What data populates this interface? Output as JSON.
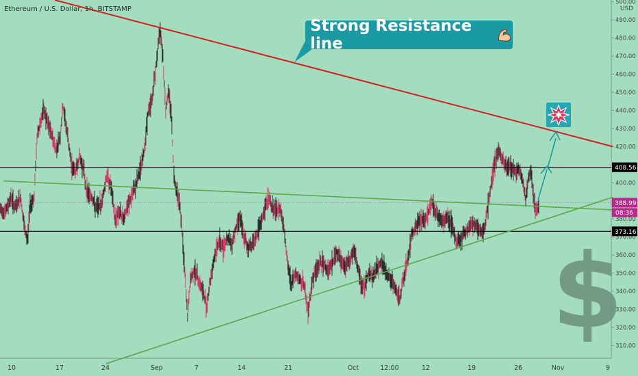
{
  "header": {
    "symbol_text": "Ethereum / U.S. Dollar, 1h, BITSTAMP"
  },
  "annotations": {
    "callout_text": "Strong Resistance line",
    "callout_emoji": "flexed-biceps-icon",
    "boom_icon": "collision-icon",
    "dollar_sign": "$"
  },
  "axis": {
    "currency": "USD"
  },
  "colors": {
    "background": "#a3dcbf",
    "candle_up": "#1a1a1a",
    "candle_down": "#e0245e",
    "resistance": "#d41e1e",
    "trend_green": "#5aa84a",
    "horizontal": "#000000",
    "arrow": "#1a9ba4",
    "price_tag": "#b52a8a"
  },
  "chart_data": {
    "type": "candlestick",
    "title": "Ethereum / U.S. Dollar, 1h, BITSTAMP",
    "ylabel": "USD",
    "ylim": [
      303,
      501
    ],
    "y_ticks": [
      310,
      320,
      330,
      340,
      350,
      360,
      370,
      380,
      390,
      400,
      410,
      420,
      430,
      440,
      450,
      460,
      470,
      480,
      490,
      500
    ],
    "x_ticks": [
      "10",
      "17",
      "24",
      "Sep",
      "7",
      "14",
      "21",
      "Oct",
      "12:00",
      "12",
      "19",
      "26",
      "Nov",
      "9"
    ],
    "series_points": [
      {
        "x": 0,
        "y": 385
      },
      {
        "x": 8,
        "y": 384
      },
      {
        "x": 16,
        "y": 392
      },
      {
        "x": 22,
        "y": 386
      },
      {
        "x": 30,
        "y": 392
      },
      {
        "x": 36,
        "y": 374
      },
      {
        "x": 40,
        "y": 368
      },
      {
        "x": 44,
        "y": 388
      },
      {
        "x": 50,
        "y": 392
      },
      {
        "x": 54,
        "y": 425
      },
      {
        "x": 58,
        "y": 432
      },
      {
        "x": 64,
        "y": 440
      },
      {
        "x": 70,
        "y": 432
      },
      {
        "x": 76,
        "y": 426
      },
      {
        "x": 82,
        "y": 418
      },
      {
        "x": 88,
        "y": 426
      },
      {
        "x": 92,
        "y": 442
      },
      {
        "x": 98,
        "y": 428
      },
      {
        "x": 104,
        "y": 410
      },
      {
        "x": 110,
        "y": 406
      },
      {
        "x": 116,
        "y": 414
      },
      {
        "x": 122,
        "y": 408
      },
      {
        "x": 126,
        "y": 396
      },
      {
        "x": 134,
        "y": 392
      },
      {
        "x": 140,
        "y": 386
      },
      {
        "x": 148,
        "y": 388
      },
      {
        "x": 156,
        "y": 404
      },
      {
        "x": 162,
        "y": 398
      },
      {
        "x": 168,
        "y": 380
      },
      {
        "x": 174,
        "y": 384
      },
      {
        "x": 180,
        "y": 380
      },
      {
        "x": 186,
        "y": 386
      },
      {
        "x": 192,
        "y": 392
      },
      {
        "x": 198,
        "y": 398
      },
      {
        "x": 204,
        "y": 406
      },
      {
        "x": 210,
        "y": 416
      },
      {
        "x": 216,
        "y": 438
      },
      {
        "x": 222,
        "y": 446
      },
      {
        "x": 226,
        "y": 458
      },
      {
        "x": 230,
        "y": 472
      },
      {
        "x": 234,
        "y": 486
      },
      {
        "x": 238,
        "y": 470
      },
      {
        "x": 242,
        "y": 440
      },
      {
        "x": 246,
        "y": 450
      },
      {
        "x": 250,
        "y": 440
      },
      {
        "x": 254,
        "y": 404
      },
      {
        "x": 258,
        "y": 396
      },
      {
        "x": 262,
        "y": 390
      },
      {
        "x": 266,
        "y": 372
      },
      {
        "x": 270,
        "y": 350
      },
      {
        "x": 274,
        "y": 326
      },
      {
        "x": 278,
        "y": 346
      },
      {
        "x": 284,
        "y": 352
      },
      {
        "x": 290,
        "y": 346
      },
      {
        "x": 296,
        "y": 340
      },
      {
        "x": 302,
        "y": 332
      },
      {
        "x": 308,
        "y": 348
      },
      {
        "x": 314,
        "y": 360
      },
      {
        "x": 320,
        "y": 368
      },
      {
        "x": 326,
        "y": 364
      },
      {
        "x": 332,
        "y": 370
      },
      {
        "x": 338,
        "y": 366
      },
      {
        "x": 344,
        "y": 374
      },
      {
        "x": 350,
        "y": 382
      },
      {
        "x": 356,
        "y": 370
      },
      {
        "x": 362,
        "y": 364
      },
      {
        "x": 368,
        "y": 366
      },
      {
        "x": 374,
        "y": 370
      },
      {
        "x": 380,
        "y": 376
      },
      {
        "x": 386,
        "y": 384
      },
      {
        "x": 392,
        "y": 392
      },
      {
        "x": 398,
        "y": 386
      },
      {
        "x": 404,
        "y": 384
      },
      {
        "x": 410,
        "y": 386
      },
      {
        "x": 416,
        "y": 372
      },
      {
        "x": 420,
        "y": 354
      },
      {
        "x": 426,
        "y": 344
      },
      {
        "x": 432,
        "y": 350
      },
      {
        "x": 438,
        "y": 346
      },
      {
        "x": 444,
        "y": 344
      },
      {
        "x": 450,
        "y": 328
      },
      {
        "x": 456,
        "y": 346
      },
      {
        "x": 462,
        "y": 352
      },
      {
        "x": 468,
        "y": 356
      },
      {
        "x": 474,
        "y": 354
      },
      {
        "x": 480,
        "y": 352
      },
      {
        "x": 486,
        "y": 356
      },
      {
        "x": 492,
        "y": 362
      },
      {
        "x": 498,
        "y": 356
      },
      {
        "x": 504,
        "y": 354
      },
      {
        "x": 510,
        "y": 356
      },
      {
        "x": 516,
        "y": 362
      },
      {
        "x": 520,
        "y": 358
      },
      {
        "x": 526,
        "y": 346
      },
      {
        "x": 532,
        "y": 342
      },
      {
        "x": 538,
        "y": 350
      },
      {
        "x": 544,
        "y": 348
      },
      {
        "x": 550,
        "y": 352
      },
      {
        "x": 556,
        "y": 356
      },
      {
        "x": 562,
        "y": 352
      },
      {
        "x": 568,
        "y": 348
      },
      {
        "x": 574,
        "y": 344
      },
      {
        "x": 578,
        "y": 340
      },
      {
        "x": 584,
        "y": 336
      },
      {
        "x": 590,
        "y": 348
      },
      {
        "x": 596,
        "y": 358
      },
      {
        "x": 602,
        "y": 372
      },
      {
        "x": 608,
        "y": 376
      },
      {
        "x": 614,
        "y": 380
      },
      {
        "x": 620,
        "y": 378
      },
      {
        "x": 626,
        "y": 384
      },
      {
        "x": 630,
        "y": 390
      },
      {
        "x": 636,
        "y": 384
      },
      {
        "x": 642,
        "y": 380
      },
      {
        "x": 648,
        "y": 378
      },
      {
        "x": 654,
        "y": 382
      },
      {
        "x": 660,
        "y": 376
      },
      {
        "x": 666,
        "y": 368
      },
      {
        "x": 672,
        "y": 368
      },
      {
        "x": 678,
        "y": 372
      },
      {
        "x": 684,
        "y": 374
      },
      {
        "x": 690,
        "y": 378
      },
      {
        "x": 696,
        "y": 376
      },
      {
        "x": 702,
        "y": 372
      },
      {
        "x": 708,
        "y": 376
      },
      {
        "x": 714,
        "y": 390
      },
      {
        "x": 718,
        "y": 400
      },
      {
        "x": 722,
        "y": 410
      },
      {
        "x": 728,
        "y": 418
      },
      {
        "x": 734,
        "y": 412
      },
      {
        "x": 740,
        "y": 408
      },
      {
        "x": 746,
        "y": 410
      },
      {
        "x": 752,
        "y": 406
      },
      {
        "x": 758,
        "y": 408
      },
      {
        "x": 764,
        "y": 400
      },
      {
        "x": 768,
        "y": 390
      },
      {
        "x": 772,
        "y": 404
      },
      {
        "x": 776,
        "y": 406
      },
      {
        "x": 780,
        "y": 388
      },
      {
        "x": 784,
        "y": 384
      },
      {
        "x": 788,
        "y": 388
      }
    ],
    "lines": [
      {
        "name": "resistance",
        "points": [
          [
            80,
            501
          ],
          [
            895,
            420
          ]
        ]
      },
      {
        "name": "upper-trend",
        "points": [
          [
            5,
            401
          ],
          [
            895,
            385
          ]
        ]
      },
      {
        "name": "lower-trend",
        "points": [
          [
            155,
            300
          ],
          [
            895,
            392
          ]
        ]
      }
    ],
    "horizontal_levels": [
      408.56,
      373.16
    ],
    "price_labels": [
      {
        "value": 408.56,
        "text": "408.56"
      },
      {
        "value": 388.99,
        "text": "388.99"
      },
      {
        "value": 373.16,
        "text": "373.16"
      }
    ],
    "countdown": "08:36"
  }
}
